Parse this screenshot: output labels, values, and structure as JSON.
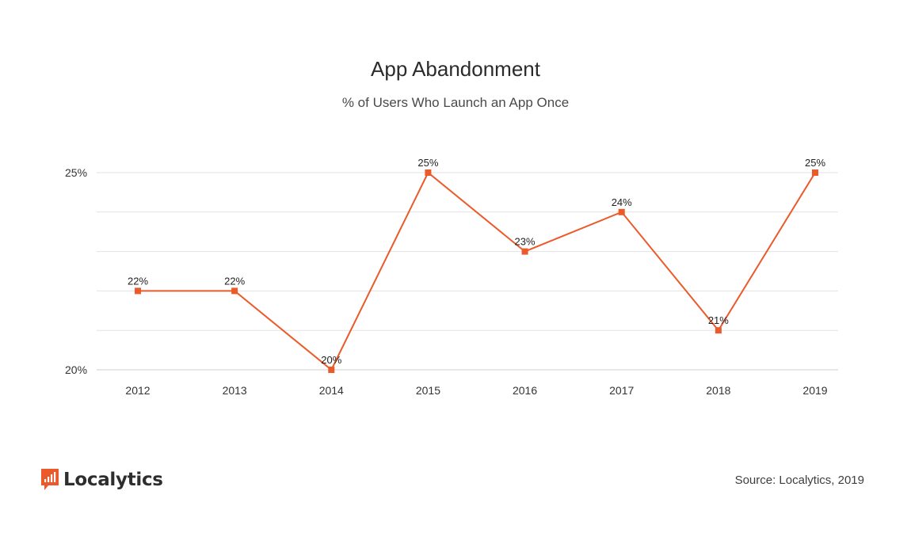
{
  "chart_data": {
    "type": "line",
    "title": "App Abandonment",
    "subtitle": "% of Users Who Launch an App Once",
    "xlabel": "",
    "ylabel": "",
    "categories": [
      "2012",
      "2013",
      "2014",
      "2015",
      "2016",
      "2017",
      "2018",
      "2019"
    ],
    "series": [
      {
        "values": [
          22,
          22,
          20,
          25,
          23,
          24,
          21,
          25
        ],
        "data_labels": [
          "22%",
          "22%",
          "20%",
          "25%",
          "23%",
          "24%",
          "21%",
          "25%"
        ]
      }
    ],
    "ylim": [
      20,
      25
    ],
    "yticks": [
      20,
      25
    ],
    "ytick_labels": [
      "20%",
      "25%"
    ],
    "grid": true,
    "color": "#ea5a2a",
    "grid_color": "#e2e2e2"
  },
  "logo": {
    "text": "Localytics",
    "icon": "localytics-logo-icon",
    "color": "#ea5a2a"
  },
  "source": "Source: Localytics, 2019"
}
